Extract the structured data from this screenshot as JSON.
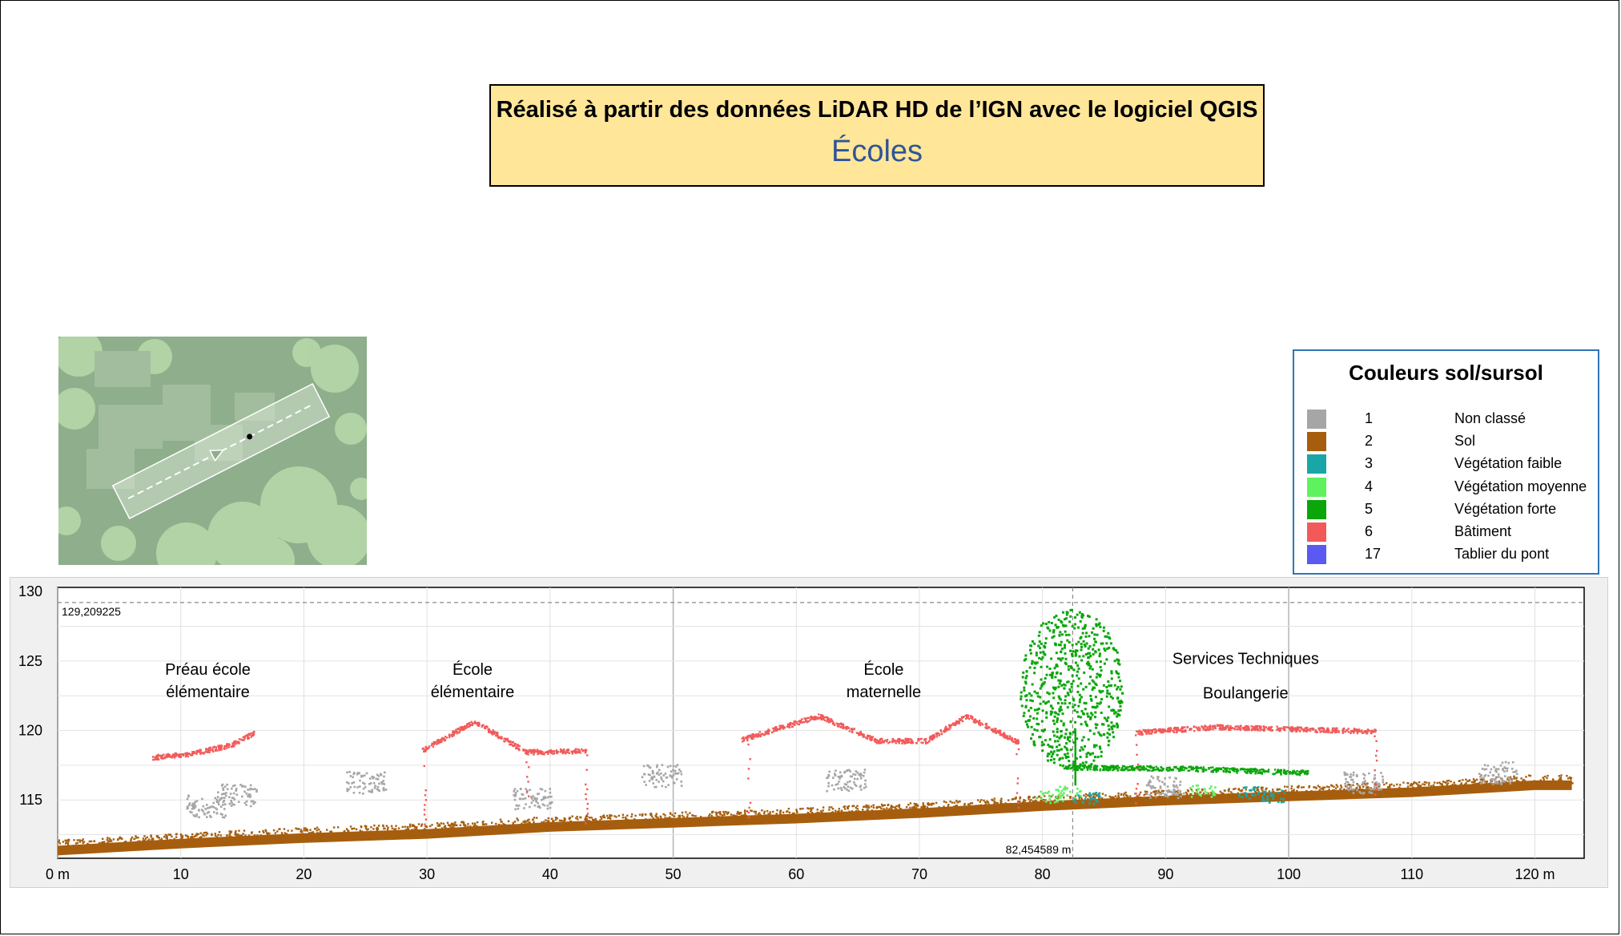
{
  "header": {
    "title": "Réalisé à partir des données LiDAR HD de l’IGN avec le logiciel QGIS",
    "subtitle": "Écoles"
  },
  "legend": {
    "title": "Couleurs sol/sursol",
    "items": [
      {
        "code": "1",
        "label": "Non classé",
        "color": "#a6a6a6"
      },
      {
        "code": "2",
        "label": "Sol",
        "color": "#a65e0e"
      },
      {
        "code": "3",
        "label": "Végétation faible",
        "color": "#1aa6a6"
      },
      {
        "code": "4",
        "label": "Végétation moyenne",
        "color": "#5ef25e"
      },
      {
        "code": "5",
        "label": "Végétation forte",
        "color": "#0aa60a"
      },
      {
        "code": "6",
        "label": "Bâtiment",
        "color": "#f25a5a"
      },
      {
        "code": "17",
        "label": "Tablier du pont",
        "color": "#5a5af2"
      }
    ]
  },
  "minimap": {
    "background_color": "#8fae8c",
    "icon": "profile-line-icon"
  },
  "chart_data": {
    "type": "scatter",
    "xlim": [
      0,
      124
    ],
    "ylim": [
      110.8,
      130.3
    ],
    "x_ticks": [
      0,
      10,
      20,
      30,
      40,
      50,
      60,
      70,
      80,
      90,
      100,
      110,
      120
    ],
    "x_tick_labels": [
      "0 m",
      "10",
      "20",
      "30",
      "40",
      "50",
      "60",
      "70",
      "80",
      "90",
      "100",
      "110",
      "120 m"
    ],
    "y_ticks": [
      115,
      120,
      125,
      130
    ],
    "y_tick_labels": [
      "115",
      "120",
      "125",
      "130"
    ],
    "grid": true,
    "max_elevation": {
      "value": 129.209225,
      "label": "129,209225"
    },
    "cursor": {
      "x": 82.454589,
      "label": "82,454589 m"
    },
    "annotations": [
      {
        "text": "Préau école",
        "x": 12.2,
        "y": 124.0
      },
      {
        "text": "élémentaire",
        "x": 12.2,
        "y": 122.4
      },
      {
        "text": "École",
        "x": 33.7,
        "y": 124.0
      },
      {
        "text": "élémentaire",
        "x": 33.7,
        "y": 122.4
      },
      {
        "text": "École",
        "x": 67.1,
        "y": 124.0
      },
      {
        "text": "maternelle",
        "x": 67.1,
        "y": 122.4
      },
      {
        "text": "Services Techniques",
        "x": 96.5,
        "y": 124.8
      },
      {
        "text": "Boulangerie",
        "x": 96.5,
        "y": 122.3
      }
    ],
    "series": [
      {
        "name": "Sol",
        "class": 2,
        "points": [
          [
            0,
            111.7
          ],
          [
            10,
            112.2
          ],
          [
            20,
            112.6
          ],
          [
            30,
            112.9
          ],
          [
            40,
            113.4
          ],
          [
            50,
            113.7
          ],
          [
            60,
            114.0
          ],
          [
            70,
            114.4
          ],
          [
            80,
            114.9
          ],
          [
            90,
            115.3
          ],
          [
            100,
            115.6
          ],
          [
            110,
            115.9
          ],
          [
            120,
            116.4
          ],
          [
            123,
            116.4
          ]
        ]
      },
      {
        "name": "Bâtiment — Préau école élémentaire",
        "class": 6,
        "points": [
          [
            7.5,
            118.1
          ],
          [
            11,
            118.4
          ],
          [
            14,
            119.0
          ],
          [
            16,
            119.9
          ]
        ]
      },
      {
        "name": "Bâtiment — École élémentaire",
        "class": 6,
        "points": [
          [
            29.5,
            118.6
          ],
          [
            33.8,
            120.7
          ],
          [
            38,
            118.5
          ],
          [
            38.5,
            118.5
          ],
          [
            43,
            118.6
          ]
        ]
      },
      {
        "name": "Bâtiment — École maternelle",
        "class": 6,
        "points": [
          [
            55.5,
            119.4
          ],
          [
            61.8,
            121.1
          ],
          [
            66.5,
            119.3
          ],
          [
            70.5,
            119.3
          ],
          [
            73.8,
            121.1
          ],
          [
            78,
            119.2
          ]
        ]
      },
      {
        "name": "Bâtiment — Services Techniques / Boulangerie",
        "class": 6,
        "points": [
          [
            87.5,
            119.9
          ],
          [
            94,
            120.3
          ],
          [
            102,
            120.1
          ],
          [
            107,
            120.0
          ]
        ]
      },
      {
        "name": "Végétation forte — arbre",
        "class": 5,
        "points": [
          [
            82.7,
            116.2
          ],
          [
            82.5,
            119
          ],
          [
            82.2,
            122
          ],
          [
            82.4,
            125
          ],
          [
            82.5,
            128.1
          ],
          [
            82.7,
            129.0
          ]
        ]
      },
      {
        "name": "Végétation forte — haie",
        "class": 5,
        "points": [
          [
            81.5,
            117.4
          ],
          [
            92,
            117.3
          ],
          [
            101.5,
            117.0
          ]
        ]
      },
      {
        "name": "Non classé",
        "class": 1,
        "points": [
          [
            12,
            114.6
          ],
          [
            14.5,
            115.4
          ],
          [
            25,
            116.3
          ],
          [
            38.5,
            115.1
          ],
          [
            49,
            116.8
          ],
          [
            64,
            116.5
          ],
          [
            90,
            116.0
          ],
          [
            106,
            116.3
          ],
          [
            117,
            117.0
          ]
        ]
      },
      {
        "name": "Végétation moyenne",
        "class": 4,
        "points": [
          [
            80.5,
            115.3
          ],
          [
            82,
            115.6
          ],
          [
            93,
            115.7
          ]
        ]
      },
      {
        "name": "Végétation faible",
        "class": 3,
        "points": [
          [
            83.5,
            115.2
          ],
          [
            97,
            115.6
          ],
          [
            98.5,
            115.3
          ]
        ]
      }
    ]
  }
}
